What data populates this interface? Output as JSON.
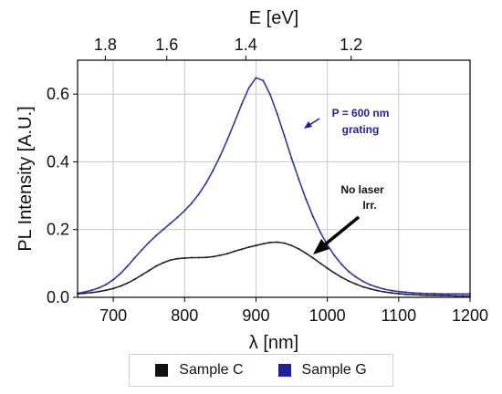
{
  "chart_data": {
    "type": "scatter",
    "xlabel": "λ [nm]",
    "ylabel": "PL Intensity [A.U.]",
    "top_xlabel": "E [eV]",
    "xlim": [
      650,
      1200
    ],
    "ylim": [
      0,
      0.7
    ],
    "x_ticks": [
      700,
      800,
      900,
      1000,
      1100,
      1200
    ],
    "y_ticks": [
      0.0,
      0.2,
      0.4,
      0.6
    ],
    "top_ticks": [
      1.8,
      1.6,
      1.4,
      1.2
    ],
    "grid": true,
    "legend_position": "bottom-outside",
    "series": [
      {
        "name": "Sample C",
        "color": "#111111",
        "x": [
          650,
          660,
          670,
          680,
          690,
          700,
          710,
          720,
          730,
          740,
          750,
          760,
          770,
          780,
          790,
          800,
          810,
          820,
          830,
          840,
          850,
          860,
          870,
          880,
          890,
          900,
          910,
          920,
          930,
          940,
          950,
          960,
          970,
          980,
          990,
          1000,
          1010,
          1020,
          1030,
          1040,
          1050,
          1060,
          1070,
          1080,
          1090,
          1100,
          1110,
          1120,
          1130,
          1140,
          1150,
          1160,
          1170,
          1180,
          1190,
          1200
        ],
        "y": [
          0.01,
          0.012,
          0.014,
          0.017,
          0.021,
          0.026,
          0.033,
          0.042,
          0.053,
          0.066,
          0.079,
          0.092,
          0.102,
          0.11,
          0.114,
          0.116,
          0.117,
          0.117,
          0.118,
          0.12,
          0.124,
          0.129,
          0.136,
          0.142,
          0.148,
          0.153,
          0.158,
          0.162,
          0.163,
          0.16,
          0.153,
          0.143,
          0.13,
          0.116,
          0.101,
          0.086,
          0.072,
          0.059,
          0.048,
          0.039,
          0.031,
          0.025,
          0.02,
          0.016,
          0.013,
          0.011,
          0.009,
          0.008,
          0.007,
          0.006,
          0.006,
          0.005,
          0.005,
          0.004,
          0.004,
          0.004
        ]
      },
      {
        "name": "Sample G",
        "color": "#1f1f9c",
        "x": [
          650,
          660,
          670,
          680,
          690,
          700,
          710,
          720,
          730,
          740,
          750,
          760,
          770,
          780,
          790,
          800,
          810,
          820,
          830,
          840,
          850,
          860,
          870,
          880,
          890,
          900,
          910,
          920,
          930,
          940,
          950,
          960,
          970,
          980,
          990,
          1000,
          1010,
          1020,
          1030,
          1040,
          1050,
          1060,
          1070,
          1080,
          1090,
          1100,
          1110,
          1120,
          1130,
          1140,
          1150,
          1160,
          1170,
          1180,
          1190,
          1200
        ],
        "y": [
          0.012,
          0.016,
          0.021,
          0.028,
          0.038,
          0.052,
          0.07,
          0.092,
          0.116,
          0.14,
          0.162,
          0.182,
          0.2,
          0.218,
          0.236,
          0.256,
          0.278,
          0.305,
          0.337,
          0.375,
          0.418,
          0.466,
          0.517,
          0.57,
          0.618,
          0.648,
          0.64,
          0.598,
          0.54,
          0.476,
          0.41,
          0.348,
          0.29,
          0.238,
          0.193,
          0.155,
          0.123,
          0.097,
          0.076,
          0.06,
          0.047,
          0.037,
          0.03,
          0.024,
          0.02,
          0.017,
          0.015,
          0.013,
          0.012,
          0.011,
          0.011,
          0.01,
          0.01,
          0.01,
          0.01,
          0.01
        ]
      }
    ]
  },
  "annotations": {
    "g_label_line1": "P = 600 nm",
    "g_label_line2": "grating",
    "c_label_line1": "No laser",
    "c_label_line2": "Irr."
  },
  "legend": {
    "items": [
      {
        "label": "Sample C",
        "color": "#111111"
      },
      {
        "label": "Sample G",
        "color": "#1f1f9c"
      }
    ]
  },
  "colors": {
    "g_annotation": "#1f1f9c",
    "c_annotation": "#111111"
  }
}
